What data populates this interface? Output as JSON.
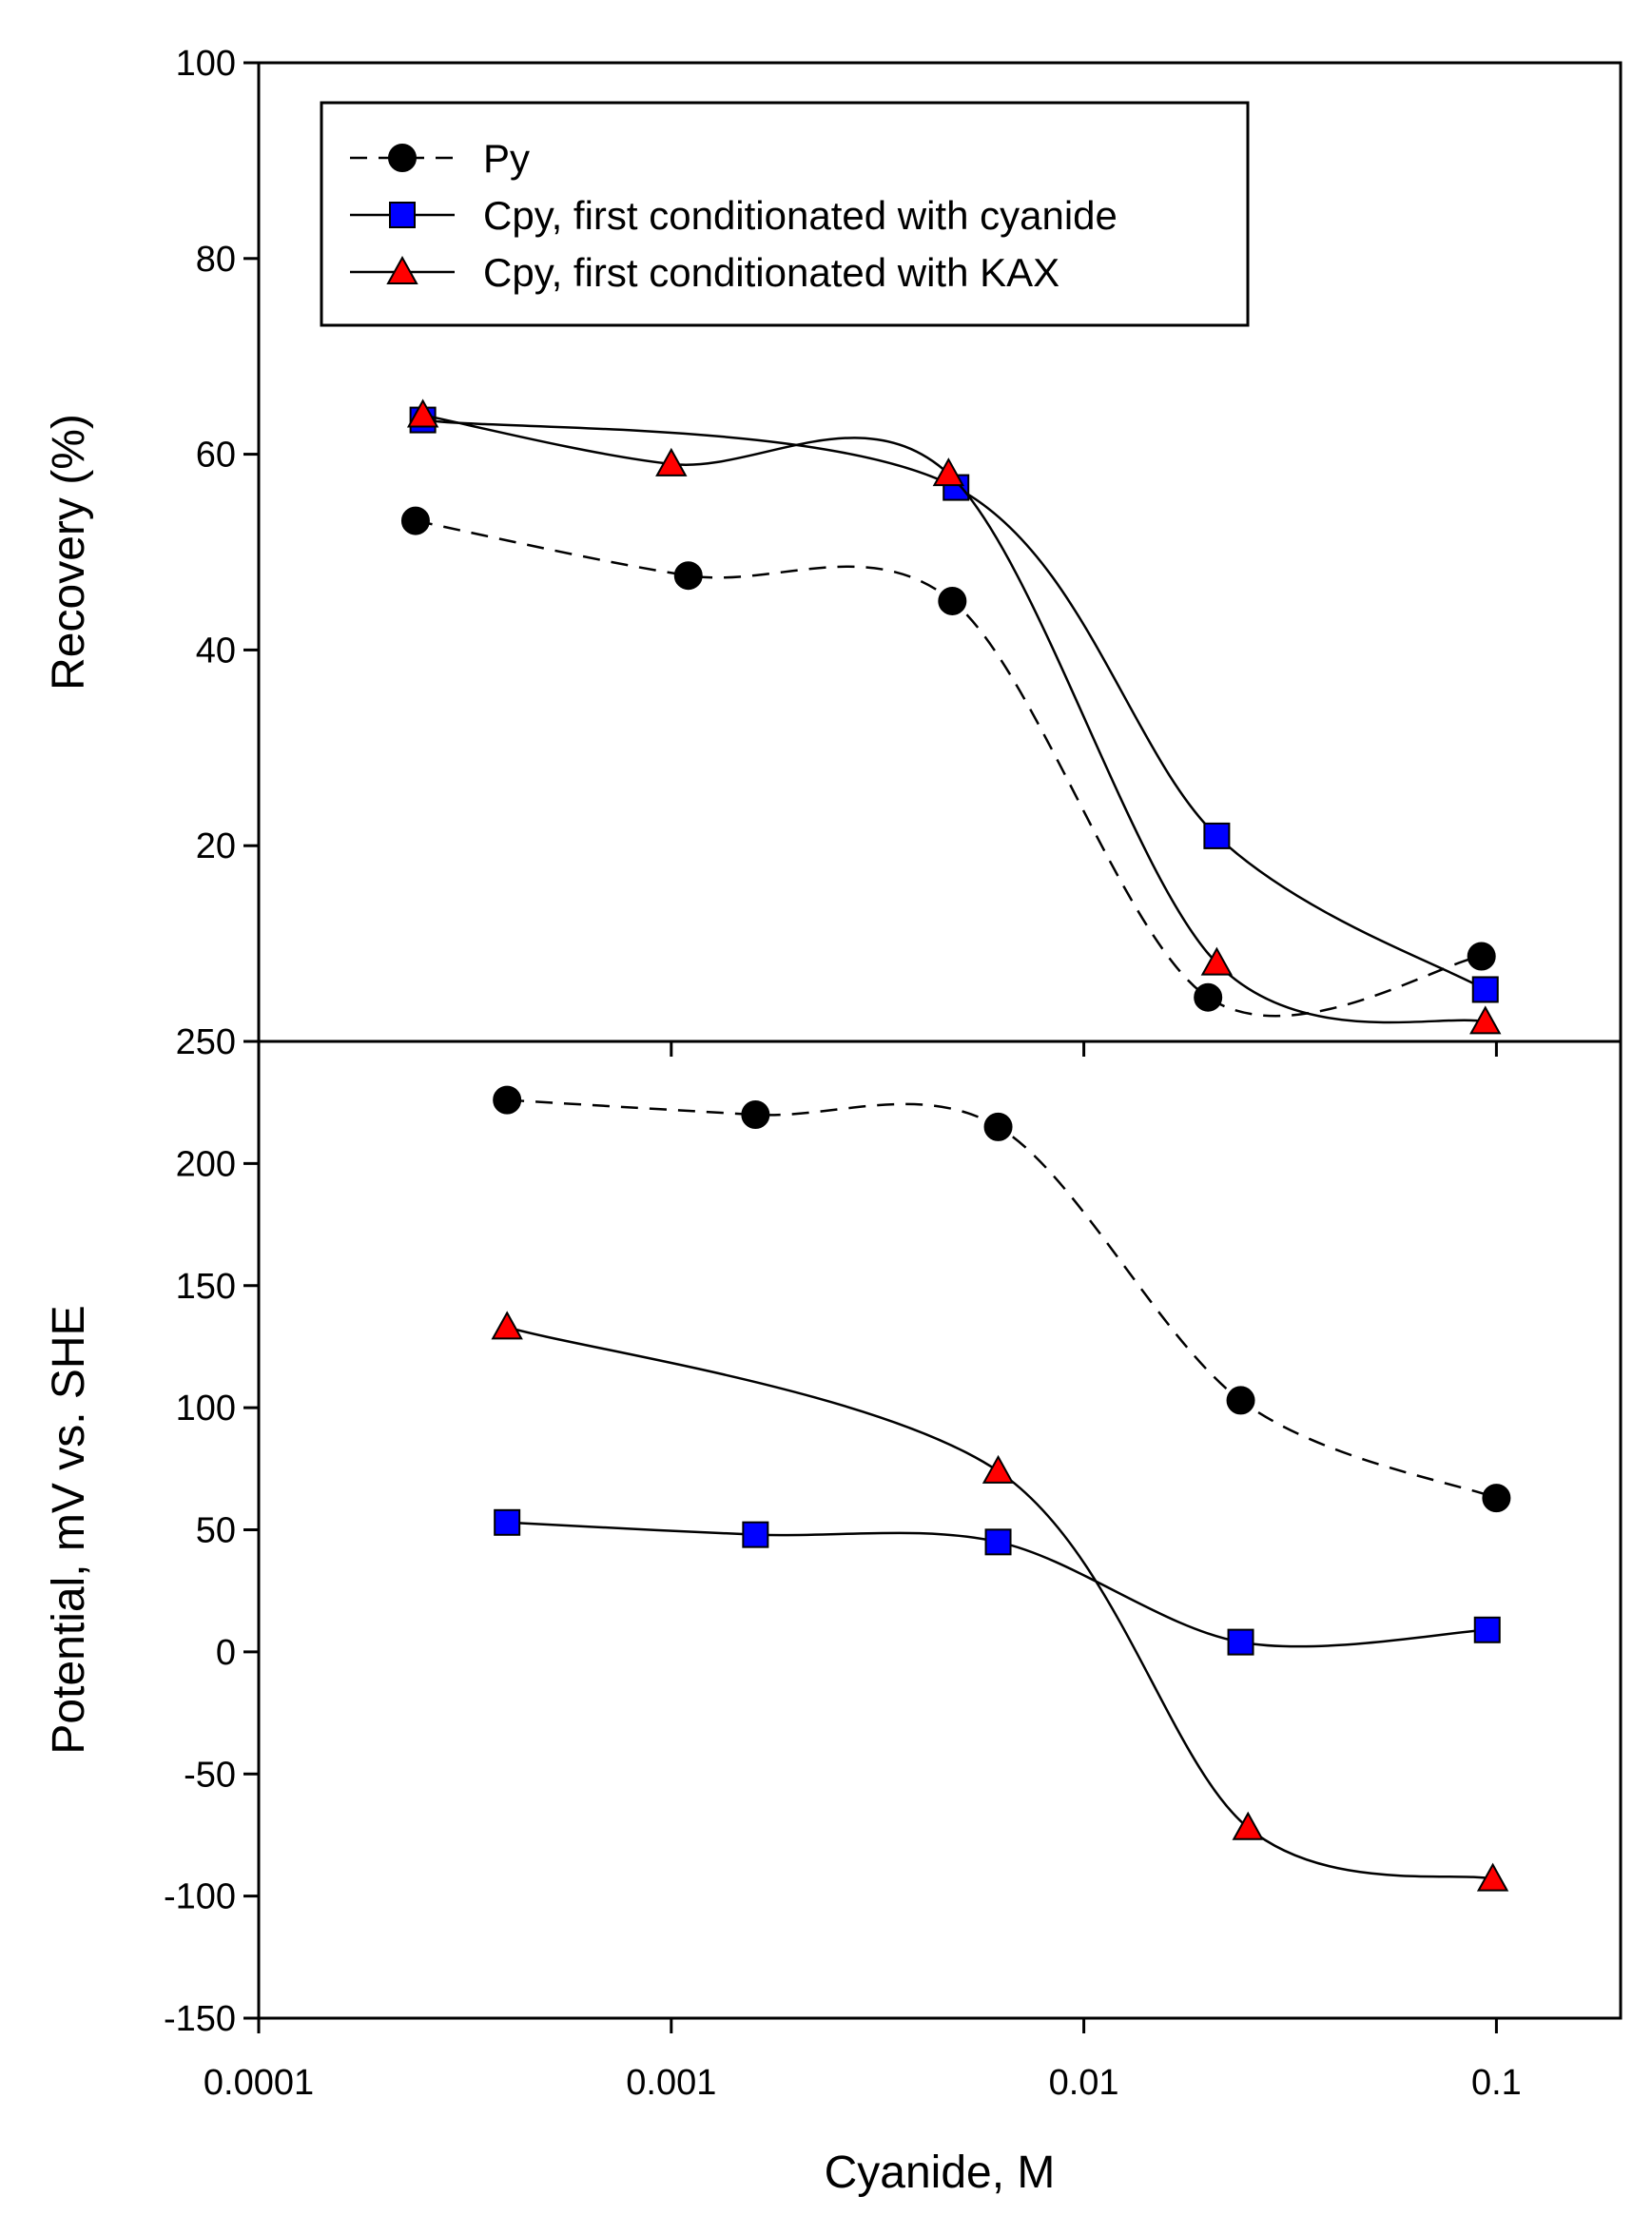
{
  "chart_data": [
    {
      "type": "line",
      "panel": "top",
      "ylabel": "Recovery (%)",
      "xlabel": "",
      "x_scale": "log",
      "xlim": [
        0.0001,
        0.2
      ],
      "ylim": [
        0,
        100
      ],
      "y_tick_values": [
        20,
        40,
        60,
        80,
        100
      ],
      "y_tick_labels": [
        "20",
        "40",
        "60",
        "80",
        "100"
      ],
      "legend_position": "top-left",
      "legend": [
        {
          "label": "Py",
          "style": "dashed",
          "marker": "circle",
          "color": "#000000"
        },
        {
          "label": "Cpy, first conditionated with cyanide",
          "style": "solid",
          "marker": "square",
          "color": "#0000ff"
        },
        {
          "label": "Cpy, first conditionated with KAX",
          "style": "solid",
          "marker": "triangle",
          "color": "#ff0000"
        }
      ],
      "series": [
        {
          "name": "Py",
          "x": [
            0.00024,
            0.0011,
            0.0048,
            0.02,
            0.092
          ],
          "y": [
            53.2,
            47.6,
            45.0,
            4.5,
            8.7
          ]
        },
        {
          "name": "Cpy, first conditionated with cyanide",
          "x": [
            0.00025,
            0.0049,
            0.021,
            0.094
          ],
          "y": [
            63.5,
            56.6,
            21.0,
            5.3
          ]
        },
        {
          "name": "Cpy, first conditionated with KAX",
          "x": [
            0.00025,
            0.001,
            0.0047,
            0.021,
            0.094
          ],
          "y": [
            64.0,
            59.0,
            58.0,
            8.0,
            2.0
          ]
        }
      ]
    },
    {
      "type": "line",
      "panel": "bottom",
      "ylabel": "Potential, mV vs. SHE",
      "xlabel": "Cyanide, M",
      "x_scale": "log",
      "xlim": [
        0.0001,
        0.2
      ],
      "ylim": [
        -150,
        250
      ],
      "x_tick_values": [
        0.0001,
        0.001,
        0.01,
        0.1
      ],
      "x_tick_labels": [
        "0.0001",
        "0.001",
        "0.01",
        "0.1"
      ],
      "y_tick_values": [
        -150,
        -100,
        -50,
        0,
        50,
        100,
        150,
        200,
        250
      ],
      "y_tick_labels": [
        "-150",
        "-100",
        "-50",
        "0",
        "50",
        "100",
        "150",
        "200",
        "250"
      ],
      "series": [
        {
          "name": "Py",
          "x": [
            0.0004,
            0.0016,
            0.0062,
            0.024,
            0.1
          ],
          "y": [
            226,
            220,
            215,
            103,
            63
          ]
        },
        {
          "name": "Cpy, first conditionated with cyanide",
          "x": [
            0.0004,
            0.0016,
            0.0062,
            0.024,
            0.095
          ],
          "y": [
            53,
            48,
            45,
            4,
            9
          ]
        },
        {
          "name": "Cpy, first conditionated with KAX",
          "x": [
            0.0004,
            0.0062,
            0.025,
            0.098
          ],
          "y": [
            133,
            74,
            -72,
            -93
          ]
        }
      ]
    }
  ],
  "colors": {
    "py": "#000000",
    "cyanide": "#0000ff",
    "kax": "#ff0000",
    "axis": "#000000"
  }
}
